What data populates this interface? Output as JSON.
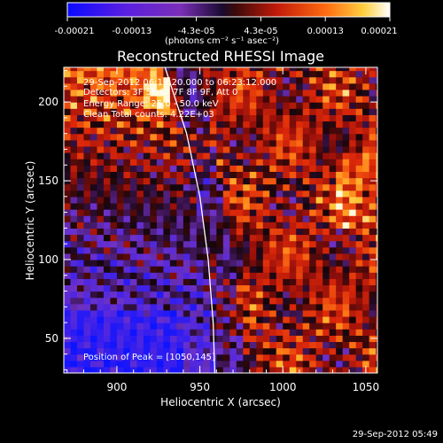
{
  "colorbar": {
    "ticks": [
      "-0.00021",
      "-0.00013",
      "-4.3e-05",
      "4.3e-05",
      "0.00013",
      "0.00021"
    ],
    "units": "(photons cm⁻² s⁻¹ asec⁻²)"
  },
  "chart_data": {
    "type": "heatmap",
    "title": "Reconstructed RHESSI Image",
    "xlabel": "Heliocentric X (arcsec)",
    "ylabel": "Heliocentric Y (arcsec)",
    "xlim": [
      868,
      1057
    ],
    "ylim": [
      28,
      222
    ],
    "xticks": [
      "900",
      "950",
      "1000",
      "1050"
    ],
    "yticks": [
      "50",
      "100",
      "150",
      "200"
    ],
    "value_range": [
      -0.00021,
      0.00021
    ],
    "colormap": "blue-purple-red-orange-yellow-white",
    "limb_curve": [
      [
        929,
        222
      ],
      [
        942,
        180
      ],
      [
        950,
        140
      ],
      [
        955,
        100
      ],
      [
        958,
        60
      ],
      [
        959,
        28
      ]
    ],
    "peak": [
      1050,
      145
    ],
    "annotations": {
      "time": "29-Sep-2012 06:19:20.000 to 06:23:12.000",
      "detectors": "Detectors: 3F 5F 6F 7F 8F 9F, Att 0",
      "energy": "Energy Range: 25.0 - 50.0 keV",
      "clean": "Clean     Total counts: 4.22E+03",
      "peak_label": "Position of Peak = [1050,145]"
    }
  },
  "footer": "29-Sep-2012 05:49"
}
